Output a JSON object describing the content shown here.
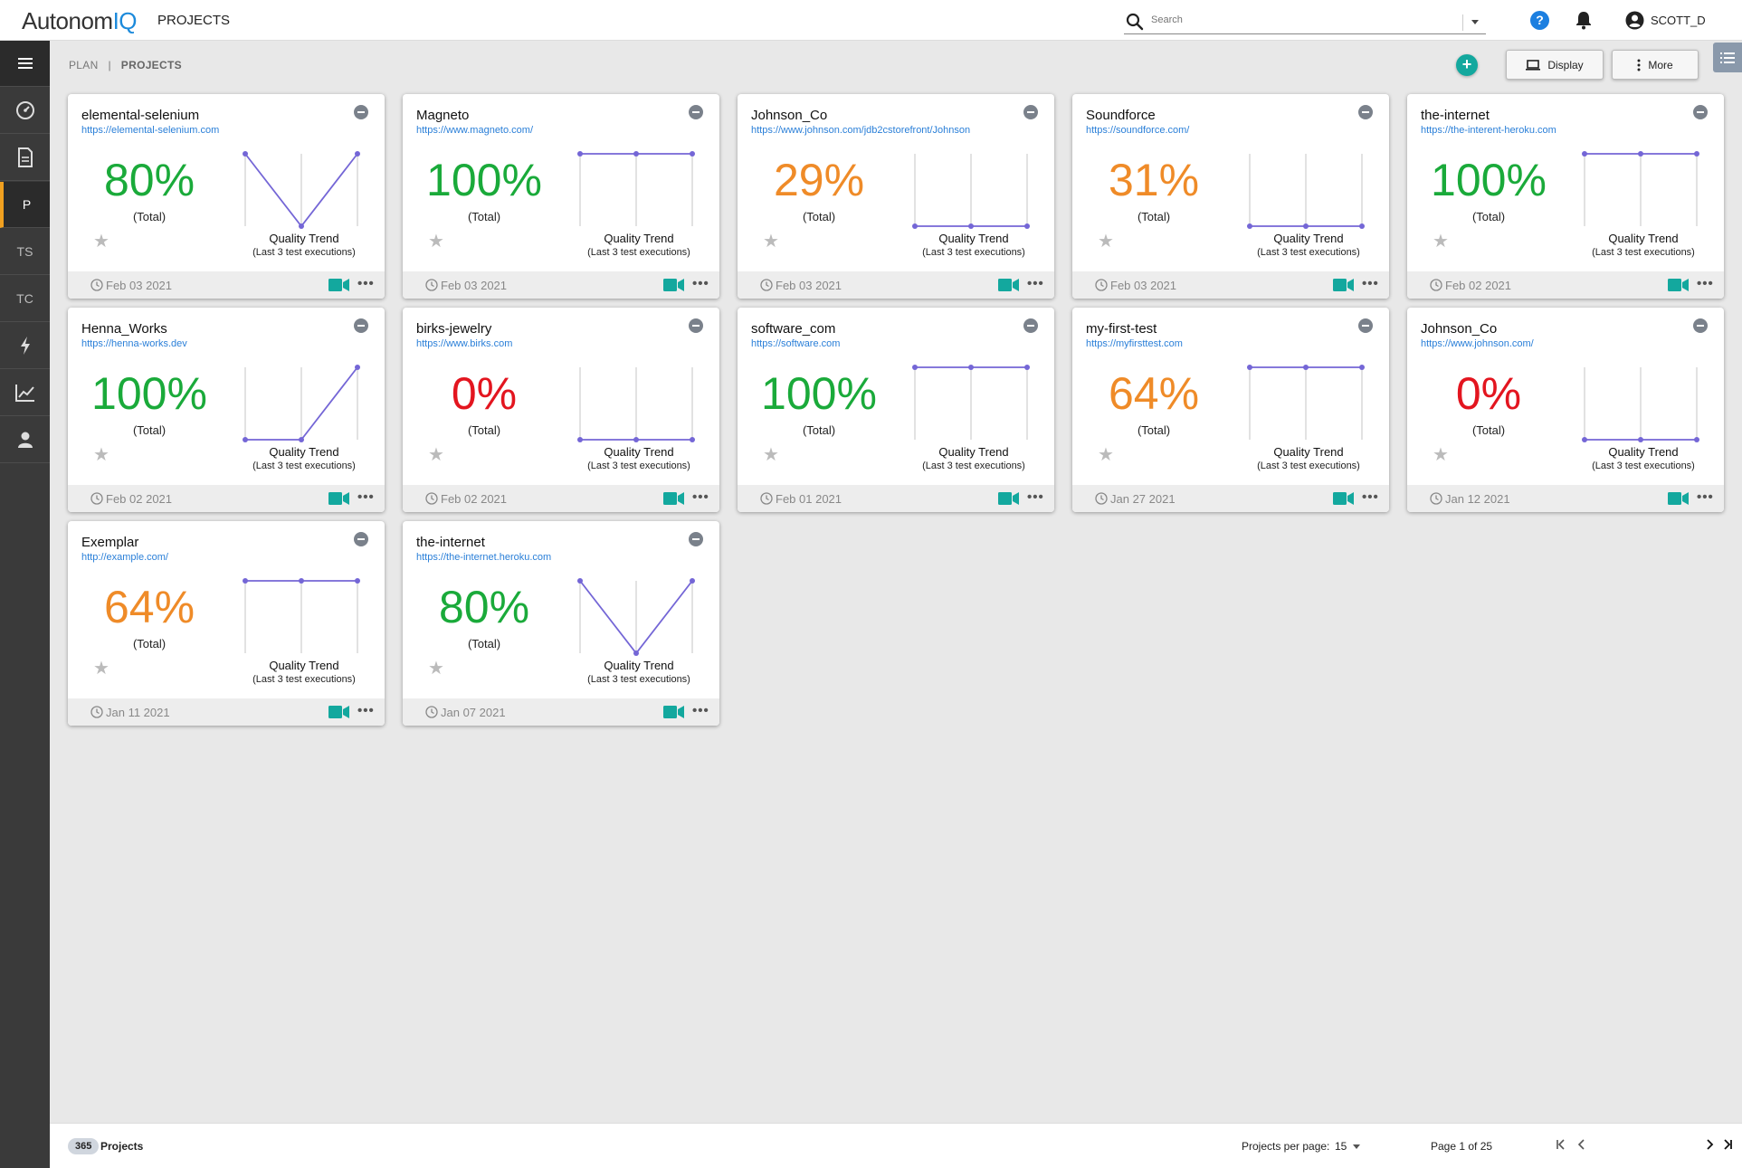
{
  "app": {
    "logo_main": "Autonom",
    "logo_accent": "IQ",
    "title": "PROJECTS",
    "search_placeholder": "Search",
    "user_name": "SCOTT_D"
  },
  "sidebar": {
    "items": [
      {
        "name": "menu",
        "icon": "menu-icon"
      },
      {
        "name": "dashboard",
        "icon": "dashboard-icon"
      },
      {
        "name": "documents",
        "icon": "document-icon"
      },
      {
        "name": "projects",
        "label": "P"
      },
      {
        "name": "test-suites",
        "label": "TS"
      },
      {
        "name": "test-cases",
        "label": "TC"
      },
      {
        "name": "execution",
        "icon": "bolt-icon"
      },
      {
        "name": "reports",
        "icon": "chart-icon"
      },
      {
        "name": "users",
        "icon": "user-icon"
      }
    ]
  },
  "breadcrumb": {
    "parent": "PLAN",
    "separator": "|",
    "current": "PROJECTS"
  },
  "toolbar": {
    "add_label": "+",
    "display_label": "Display",
    "more_label": "More"
  },
  "card_common": {
    "total_label": "(Total)",
    "trend_title": "Quality Trend",
    "trend_subtitle": "(Last 3 test executions)"
  },
  "colors": {
    "green": "#1aaa3a",
    "orange": "#ef8b28",
    "red": "#e3151f",
    "trend_line": "#7466d6",
    "accent": "#13a89e"
  },
  "projects": [
    {
      "name": "elemental-selenium",
      "url": "https://elemental-selenium.com",
      "percent": "80%",
      "status": "green",
      "trend": [
        100,
        0,
        100
      ],
      "date": "Feb 03 2021"
    },
    {
      "name": "Magneto",
      "url": "https://www.magneto.com/",
      "percent": "100%",
      "status": "green",
      "trend": [
        100,
        100,
        100
      ],
      "date": "Feb 03 2021"
    },
    {
      "name": "Johnson_Co",
      "url": "https://www.johnson.com/jdb2cstorefront/Johnson",
      "percent": "29%",
      "status": "orange",
      "trend": [
        0,
        0,
        0
      ],
      "date": "Feb 03 2021"
    },
    {
      "name": "Soundforce",
      "url": "https://soundforce.com/",
      "percent": "31%",
      "status": "orange",
      "trend": [
        0,
        0,
        0
      ],
      "date": "Feb 03 2021"
    },
    {
      "name": "the-internet",
      "url": "https://the-interent-heroku.com",
      "percent": "100%",
      "status": "green",
      "trend": [
        100,
        100,
        100
      ],
      "date": "Feb 02 2021"
    },
    {
      "name": "Henna_Works",
      "url": "https://henna-works.dev",
      "percent": "100%",
      "status": "green",
      "trend": [
        0,
        0,
        100
      ],
      "date": "Feb 02 2021"
    },
    {
      "name": "birks-jewelry",
      "url": "https://www.birks.com",
      "percent": "0%",
      "status": "red",
      "trend": [
        0,
        0,
        0
      ],
      "date": "Feb 02 2021"
    },
    {
      "name": "software_com",
      "url": "https://software.com",
      "percent": "100%",
      "status": "green",
      "trend": [
        100,
        100,
        100
      ],
      "date": "Feb 01 2021"
    },
    {
      "name": "my-first-test",
      "url": "https://myfirsttest.com",
      "percent": "64%",
      "status": "orange",
      "trend": [
        100,
        100,
        100
      ],
      "date": "Jan 27 2021"
    },
    {
      "name": "Johnson_Co",
      "url": "https://www.johnson.com/",
      "percent": "0%",
      "status": "red",
      "trend": [
        0,
        0,
        0
      ],
      "date": "Jan 12 2021"
    },
    {
      "name": "Exemplar",
      "url": "http://example.com/",
      "percent": "64%",
      "status": "orange",
      "trend": [
        100,
        100,
        100
      ],
      "date": "Jan 11 2021"
    },
    {
      "name": "the-internet",
      "url": "https://the-internet.heroku.com",
      "percent": "80%",
      "status": "green",
      "trend": [
        100,
        0,
        100
      ],
      "date": "Jan 07 2021"
    }
  ],
  "pagination": {
    "total_count": "365",
    "count_label": "Projects",
    "per_page_label": "Projects per page:",
    "per_page_value": "15",
    "page_label": "Page 1 of 25"
  }
}
